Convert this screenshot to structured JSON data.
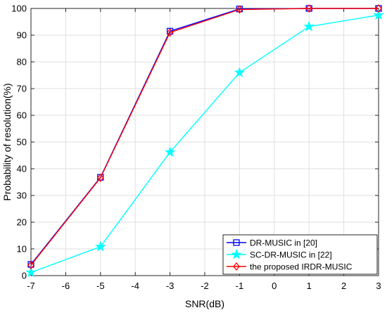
{
  "chart_data": {
    "type": "line",
    "xlabel": "SNR(dB)",
    "ylabel": "Probability of resolution(%)",
    "xlim": [
      -7,
      3
    ],
    "ylim": [
      0,
      100
    ],
    "xticks": [
      -7,
      -6,
      -5,
      -4,
      -3,
      -2,
      -1,
      0,
      1,
      2,
      3
    ],
    "yticks": [
      0,
      10,
      20,
      30,
      40,
      50,
      60,
      70,
      80,
      90,
      100
    ],
    "grid": true,
    "legend_position": "bottom-right",
    "x": [
      -7,
      -5,
      -3,
      -1,
      1,
      3
    ],
    "series": [
      {
        "name": "DR-MUSIC in [20]",
        "values": [
          4.2,
          36.8,
          91.5,
          99.8,
          100,
          100
        ],
        "color": "#0000ff",
        "marker": "square"
      },
      {
        "name": "SC-DR-MUSIC in [22]",
        "values": [
          1.2,
          10.8,
          46.2,
          76.0,
          93.2,
          97.5
        ],
        "color": "#00ffff",
        "marker": "star"
      },
      {
        "name": "the proposed IRDR-MUSIC",
        "values": [
          3.9,
          36.6,
          91.0,
          99.6,
          100,
          100
        ],
        "color": "#ff0000",
        "marker": "diamond"
      }
    ]
  }
}
